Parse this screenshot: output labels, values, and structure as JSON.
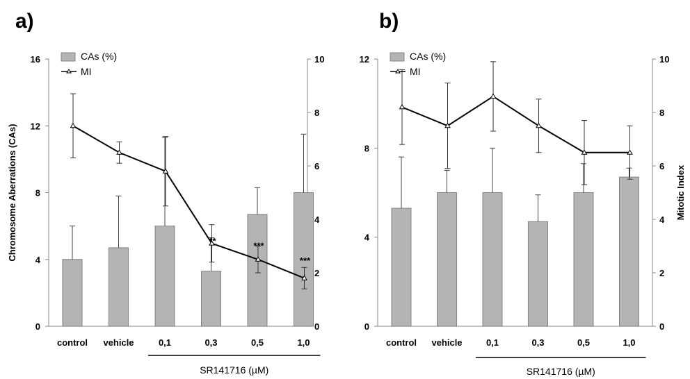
{
  "colors": {
    "bar": "#b4b4b4",
    "bar_stroke": "#6e6e6e",
    "line": "#000000",
    "axis": "#888888"
  },
  "chart_data": [
    {
      "panel_label": "a)",
      "type": "bar",
      "categories": [
        "control",
        "vehicle",
        "0,1",
        "0,3",
        "0,5",
        "1,0"
      ],
      "group_label": "SR141716 (µM)",
      "group_start_index": 2,
      "ylabel": "Chromosome Aberrations (CAs)",
      "y2label": "",
      "ylim": [
        0,
        16
      ],
      "yticks": [
        "0",
        "4",
        "8",
        "12",
        "16"
      ],
      "y2lim": [
        0,
        10
      ],
      "y2ticks": [
        "0",
        "2",
        "4",
        "6",
        "8",
        "10"
      ],
      "legend": {
        "bar": "CAs (%)",
        "line": "MI",
        "placement": "top-left"
      },
      "series": [
        {
          "name": "CAs (%)",
          "type": "bar",
          "axis": "left",
          "values": [
            4.0,
            4.7,
            6.0,
            3.3,
            6.7,
            8.0
          ],
          "error": [
            2.0,
            3.1,
            5.3,
            2.0,
            1.6,
            3.5
          ]
        },
        {
          "name": "MI",
          "type": "line",
          "axis": "right",
          "values": [
            7.5,
            6.5,
            5.8,
            3.1,
            2.5,
            1.8
          ],
          "error": [
            1.2,
            0.4,
            1.3,
            0.7,
            0.5,
            0.4
          ]
        }
      ],
      "annotations": [
        {
          "index": 3,
          "text": "**",
          "value": 5.1
        },
        {
          "index": 4,
          "text": "***",
          "value": 4.8
        },
        {
          "index": 5,
          "text": "***",
          "value": 3.9
        }
      ]
    },
    {
      "panel_label": "b)",
      "type": "bar",
      "categories": [
        "control",
        "vehicle",
        "0,1",
        "0,3",
        "0,5",
        "1,0"
      ],
      "group_label": "SR141716 (µM)",
      "group_start_index": 2,
      "ylabel": "",
      "y2label": "Mitotic Index",
      "ylim": [
        0,
        12
      ],
      "yticks": [
        "0",
        "4",
        "8",
        "12"
      ],
      "y2lim": [
        0,
        10
      ],
      "y2ticks": [
        "0",
        "2",
        "4",
        "6",
        "8",
        "10"
      ],
      "legend": {
        "bar": "CAs (%)",
        "line": "MI",
        "placement": "top-left"
      },
      "series": [
        {
          "name": "CAs (%)",
          "type": "bar",
          "axis": "left",
          "values": [
            5.3,
            6.0,
            6.0,
            4.7,
            6.0,
            6.7
          ],
          "error": [
            2.3,
            1.0,
            2.0,
            1.2,
            1.3,
            0.4
          ]
        },
        {
          "name": "MI",
          "type": "line",
          "axis": "right",
          "values": [
            8.2,
            7.5,
            8.6,
            7.5,
            6.5,
            6.5
          ],
          "error": [
            1.4,
            1.6,
            1.3,
            1.0,
            1.2,
            1.0
          ]
        }
      ],
      "annotations": []
    }
  ]
}
